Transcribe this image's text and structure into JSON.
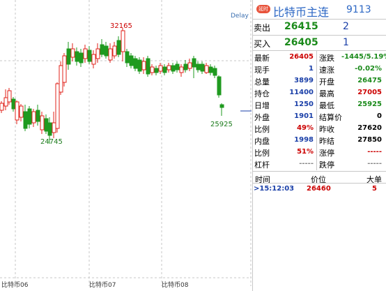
{
  "chart": {
    "delay_label": "Delay",
    "high_label": "32165",
    "low_label": "24745",
    "last_label": "25925",
    "x_labels": [
      "比特币06",
      "比特币07",
      "比特币08"
    ],
    "colors": {
      "up": "#e0201a",
      "down": "#1f9a1f",
      "grid": "#c7c7c7"
    }
  },
  "quote": {
    "delay_badge": "延时",
    "name": "比特币主连",
    "code": "9113",
    "sell": {
      "label": "卖出",
      "price": "26415",
      "volume": "2"
    },
    "buy": {
      "label": "买入",
      "price": "26405",
      "volume": "1"
    },
    "stats": [
      {
        "left_label": "最新",
        "left_value": "26405",
        "right_label": "涨跌",
        "right_value": "-1445/5.19%"
      },
      {
        "left_label": "现手",
        "left_value": "1",
        "right_label": "速涨",
        "right_value": "-0.02%"
      },
      {
        "left_label": "总量",
        "left_value": "3899",
        "right_label": "开盘",
        "right_value": "26475"
      },
      {
        "left_label": "持仓",
        "left_value": "11400",
        "right_label": "最高",
        "right_value": "27005"
      },
      {
        "left_label": "日增",
        "left_value": "1250",
        "right_label": "最低",
        "right_value": "25925"
      },
      {
        "left_label": "外盘",
        "left_value": "1901",
        "right_label": "结算价",
        "right_value": "0"
      },
      {
        "left_label": "比例",
        "left_value": "49%",
        "right_label": "昨收",
        "right_value": "27620"
      },
      {
        "left_label": "内盘",
        "left_value": "1998",
        "right_label": "昨结",
        "right_value": "27850"
      },
      {
        "left_label": "比例",
        "left_value": "51%",
        "right_label": "涨停",
        "right_value": "-----"
      },
      {
        "left_label": "杠杆",
        "left_value": "-----",
        "right_label": "跌停",
        "right_value": "-----"
      }
    ],
    "trades": {
      "headers": [
        "时间",
        "价位",
        "大单"
      ],
      "rows": [
        {
          "time": ">15:12:03",
          "price": "26460",
          "size": "5"
        }
      ]
    }
  }
}
